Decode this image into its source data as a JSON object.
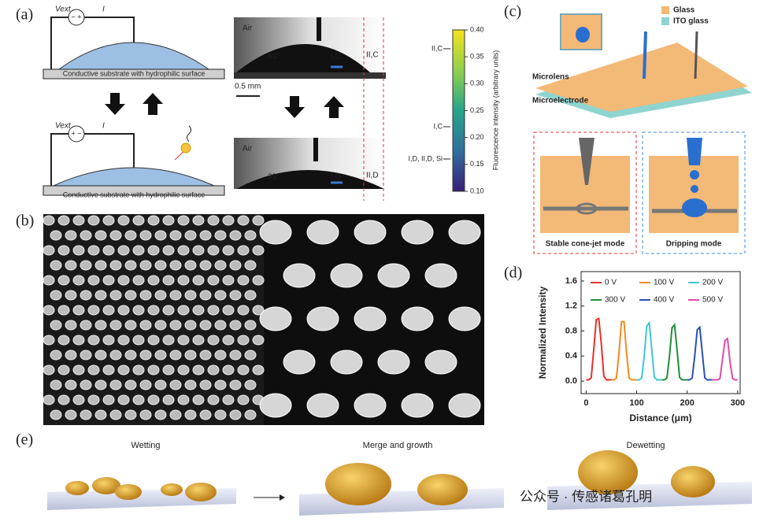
{
  "panel_labels": [
    "(a)",
    "(b)",
    "(c)",
    "(d)",
    "(e)"
  ],
  "panel_a": {
    "voltage": "Vext",
    "current": "I",
    "polarity": [
      "− +",
      "+ −"
    ],
    "substrate_labels": [
      "Conductive substrate with hydrophilic surface",
      "Conductive substrate with hydrophilic surface"
    ],
    "photo_top": {
      "medium": "Air",
      "angle": "63°",
      "spot": "I,C",
      "edge": "II,C"
    },
    "photo_bottom": {
      "medium": "Air",
      "angle": "33°",
      "spot": "I,D",
      "edge": "II,D"
    },
    "scale_bar": "0.5 mm",
    "colorbar": {
      "label": "Fluorescence intensity (arbitrary units)",
      "lim": [
        0.1,
        0.4
      ],
      "ticks": [
        {
          "value": 0.1,
          "label": "0.10"
        },
        {
          "value": 0.15,
          "label": "0.15"
        },
        {
          "value": 0.2,
          "label": "0.20"
        },
        {
          "value": 0.25,
          "label": "0.25"
        },
        {
          "value": 0.3,
          "label": "0.30"
        },
        {
          "value": 0.35,
          "label": "0.35"
        },
        {
          "value": 0.4,
          "label": "0.40"
        }
      ],
      "markers": [
        {
          "label": "II,C",
          "value": 0.365
        },
        {
          "label": "I,C",
          "value": 0.22
        },
        {
          "label": "I,D, II,D, Si",
          "value": 0.16
        }
      ]
    }
  },
  "panel_c": {
    "legend": [
      {
        "name": "Glass",
        "color": "#f3b977"
      },
      {
        "name": "ITO glass",
        "color": "#8fd4cf"
      }
    ],
    "labels": [
      "Microlens",
      "Microelectrode"
    ],
    "modes": [
      "Stable cone-jet mode",
      "Dripping mode"
    ]
  },
  "chart_data": {
    "type": "line",
    "xlabel": "Distance (μm)",
    "ylabel": "Normalized Intensity",
    "xlim": [
      -10,
      305
    ],
    "xticks": [
      0,
      100,
      200,
      300
    ],
    "ylim": [
      -0.2,
      1.75
    ],
    "yticks": [
      {
        "value": 0,
        "label": "0.0"
      },
      {
        "value": 0.4,
        "label": "0.4"
      },
      {
        "value": 0.8,
        "label": "0.8"
      },
      {
        "value": 1.2,
        "label": "1.2"
      },
      {
        "value": 1.6,
        "label": "1.6"
      }
    ],
    "series": [
      {
        "name": "0 V",
        "color": "#e8302a",
        "x": [
          0,
          5,
          10,
          15,
          20,
          25,
          30,
          35,
          40,
          45,
          50
        ],
        "values": [
          0.02,
          0.02,
          0.05,
          0.5,
          0.98,
          1.0,
          0.6,
          0.08,
          0.02,
          0.02,
          0.02
        ]
      },
      {
        "name": "100 V",
        "color": "#f28a1e",
        "x": [
          50,
          55,
          60,
          65,
          70,
          75,
          80,
          85,
          90,
          95,
          100
        ],
        "values": [
          0.02,
          0.02,
          0.05,
          0.45,
          0.95,
          0.95,
          0.45,
          0.05,
          0.02,
          0.02,
          0.02
        ]
      },
      {
        "name": "200 V",
        "color": "#3ec6d2",
        "x": [
          100,
          105,
          110,
          115,
          120,
          125,
          130,
          135,
          140,
          145,
          150
        ],
        "values": [
          0.02,
          0.02,
          0.05,
          0.4,
          0.88,
          0.93,
          0.5,
          0.06,
          0.02,
          0.02,
          0.02
        ]
      },
      {
        "name": "300 V",
        "color": "#1f8f3a",
        "x": [
          150,
          155,
          160,
          165,
          170,
          175,
          180,
          185,
          190,
          195,
          200
        ],
        "values": [
          0.02,
          0.02,
          0.05,
          0.4,
          0.85,
          0.9,
          0.5,
          0.06,
          0.02,
          0.02,
          0.02
        ]
      },
      {
        "name": "400 V",
        "color": "#2a4fb5",
        "x": [
          200,
          205,
          210,
          215,
          220,
          225,
          230,
          235,
          240,
          245,
          250
        ],
        "values": [
          0.02,
          0.02,
          0.05,
          0.4,
          0.82,
          0.86,
          0.45,
          0.05,
          0.02,
          0.02,
          0.02
        ]
      },
      {
        "name": "500 V",
        "color": "#e24ba8",
        "x": [
          250,
          255,
          260,
          265,
          270,
          275,
          280,
          285,
          290,
          295,
          300
        ],
        "values": [
          0.02,
          0.02,
          0.02,
          0.04,
          0.35,
          0.65,
          0.68,
          0.3,
          0.04,
          0.02,
          0.02
        ]
      }
    ]
  },
  "panel_e": {
    "stages": [
      "Wetting",
      "Merge and growth",
      "Dewetting"
    ]
  },
  "watermark": "公众号 · 传感诸葛孔明"
}
